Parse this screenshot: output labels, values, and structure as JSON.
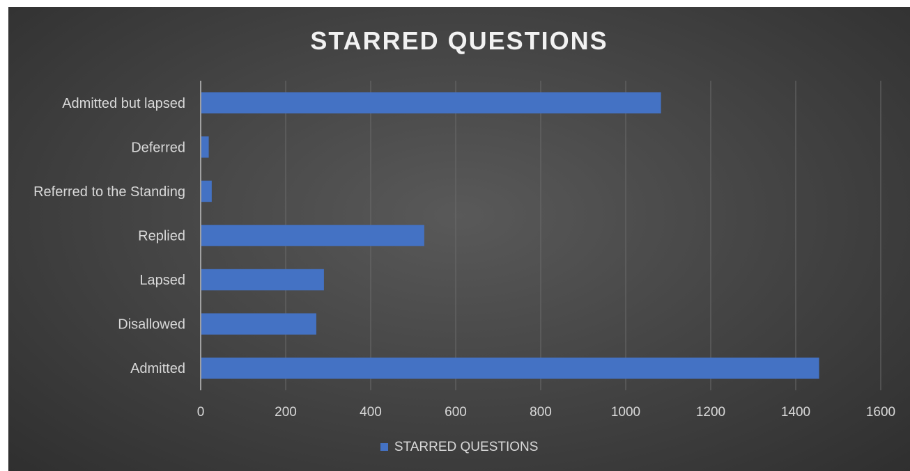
{
  "chart_data": {
    "type": "bar",
    "orientation": "horizontal",
    "title": "STARRED QUESTIONS",
    "categories": [
      "Admitted",
      "Disallowed",
      "Lapsed",
      "Replied",
      "Referred to the Standing",
      "Deferred",
      "Admitted but lapsed"
    ],
    "series": [
      {
        "name": "STARRED QUESTIONS",
        "values": [
          1455,
          272,
          290,
          526,
          26,
          19,
          1083
        ]
      }
    ],
    "xlim": [
      0,
      1600
    ],
    "x_ticks": [
      "0",
      "200",
      "400",
      "600",
      "800",
      "1000",
      "1200",
      "1400",
      "1600"
    ],
    "grid": true,
    "legend_position": "bottom",
    "colors": {
      "bar": "#4472c4",
      "background": "#404040",
      "text": "#d9d9d9",
      "title": "#f2f2f2",
      "gridline": "#6b6b6b"
    }
  }
}
